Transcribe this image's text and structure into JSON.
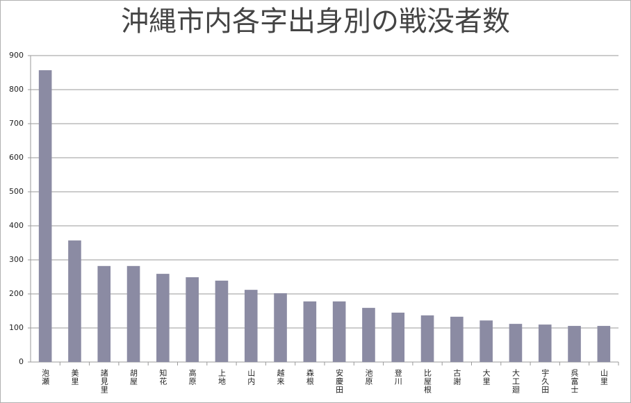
{
  "chart_data": {
    "type": "bar",
    "title": "沖縄市内各字出身別の戦没者数",
    "categories": [
      "泡瀬",
      "美里",
      "諸見里",
      "胡屋",
      "知花",
      "高原",
      "上地",
      "山内",
      "越来",
      "森根",
      "安慶田",
      "池原",
      "登川",
      "比屋根",
      "古謝",
      "大里",
      "大工廻",
      "宇久田",
      "呉富士",
      "山里"
    ],
    "values": [
      857,
      357,
      282,
      282,
      259,
      249,
      239,
      212,
      202,
      178,
      178,
      159,
      145,
      137,
      133,
      122,
      112,
      110,
      106,
      106
    ],
    "color": "#8b8ba3",
    "ylim": [
      0,
      900
    ],
    "yticks": [
      0,
      100,
      200,
      300,
      400,
      500,
      600,
      700,
      800,
      900
    ],
    "grid": true
  }
}
